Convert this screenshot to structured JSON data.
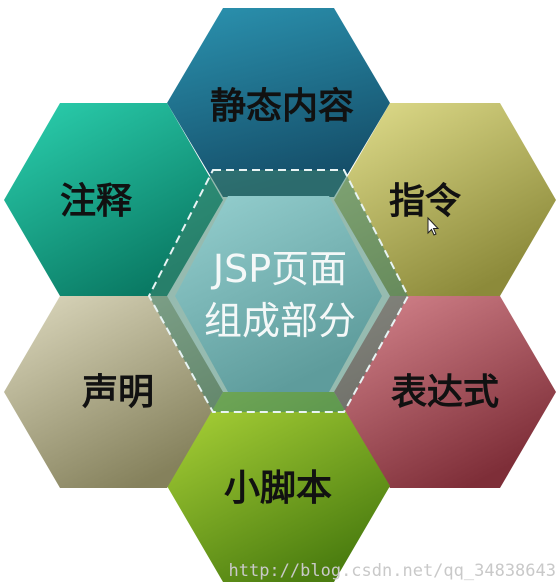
{
  "diagram": {
    "center": {
      "line1": "JSP页面",
      "line2": "组成部分"
    },
    "hexagons": {
      "top": {
        "label": "静态内容",
        "color": "#1e6c8c"
      },
      "upper_right": {
        "label": "指令",
        "color": "#c2c066"
      },
      "lower_right": {
        "label": "表达式",
        "color": "#b65a60"
      },
      "bottom": {
        "label": "小脚本",
        "color": "#7ab022"
      },
      "lower_left": {
        "label": "声明",
        "color": "#bcb89c"
      },
      "upper_left": {
        "label": "注释",
        "color": "#14a890"
      }
    },
    "center_color": "#7ab8b8"
  },
  "watermark": {
    "text": "http://blog.csdn.net/qq_34838643"
  }
}
